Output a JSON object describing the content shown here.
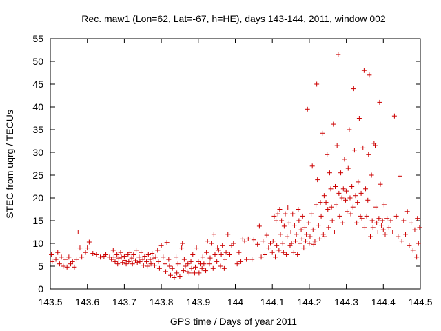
{
  "chart_data": {
    "type": "scatter",
    "title": "Rec. maw1 (Lon=62, Lat=-67, h=HE), days 143-144, 2011, window 002",
    "xlabel": "GPS time / Days of year 2011",
    "ylabel": "STEC from uqrg / TECUs",
    "xlim": [
      143.5,
      144.5
    ],
    "ylim": [
      0,
      55
    ],
    "xticks": [
      "143.5",
      "143.6",
      "143.7",
      "143.8",
      "143.9",
      "144",
      "144.1",
      "144.2",
      "144.3",
      "144.4",
      "144.5"
    ],
    "yticks": [
      "0",
      "5",
      "10",
      "15",
      "20",
      "25",
      "30",
      "35",
      "40",
      "45",
      "50",
      "55"
    ],
    "grid": false,
    "marker": "plus",
    "color": "#cc0000",
    "points": [
      [
        143.503,
        7.5
      ],
      [
        143.505,
        6.0
      ],
      [
        143.515,
        6.5
      ],
      [
        143.52,
        8.0
      ],
      [
        143.525,
        5.5
      ],
      [
        143.53,
        7.0
      ],
      [
        143.535,
        5.0
      ],
      [
        143.54,
        6.5
      ],
      [
        143.545,
        4.8
      ],
      [
        143.55,
        7.0
      ],
      [
        143.555,
        5.5
      ],
      [
        143.56,
        6.0
      ],
      [
        143.565,
        4.8
      ],
      [
        143.57,
        6.5
      ],
      [
        143.575,
        12.5
      ],
      [
        143.58,
        9.0
      ],
      [
        143.585,
        7.0
      ],
      [
        143.595,
        8.0
      ],
      [
        143.6,
        9.0
      ],
      [
        143.605,
        10.3
      ],
      [
        143.615,
        7.8
      ],
      [
        143.625,
        7.5
      ],
      [
        143.635,
        7.0
      ],
      [
        143.645,
        7.2
      ],
      [
        143.65,
        7.5
      ],
      [
        143.66,
        7.0
      ],
      [
        143.665,
        6.5
      ],
      [
        143.67,
        8.5
      ],
      [
        143.672,
        7.0
      ],
      [
        143.675,
        6.0
      ],
      [
        143.68,
        7.5
      ],
      [
        143.682,
        5.5
      ],
      [
        143.685,
        6.8
      ],
      [
        143.69,
        8.0
      ],
      [
        143.692,
        7.0
      ],
      [
        143.695,
        5.8
      ],
      [
        143.7,
        7.2
      ],
      [
        143.702,
        6.3
      ],
      [
        143.705,
        5.5
      ],
      [
        143.71,
        7.5
      ],
      [
        143.712,
        6.0
      ],
      [
        143.715,
        8.0
      ],
      [
        143.72,
        6.8
      ],
      [
        143.722,
        5.5
      ],
      [
        143.725,
        7.5
      ],
      [
        143.73,
        6.2
      ],
      [
        143.732,
        8.5
      ],
      [
        143.735,
        5.8
      ],
      [
        143.74,
        7.0
      ],
      [
        143.742,
        6.0
      ],
      [
        143.745,
        8.0
      ],
      [
        143.75,
        6.5
      ],
      [
        143.752,
        5.2
      ],
      [
        143.755,
        7.2
      ],
      [
        143.76,
        6.0
      ],
      [
        143.762,
        5.0
      ],
      [
        143.765,
        7.5
      ],
      [
        143.77,
        6.5
      ],
      [
        143.772,
        5.5
      ],
      [
        143.775,
        7.8
      ],
      [
        143.78,
        6.8
      ],
      [
        143.782,
        5.2
      ],
      [
        143.785,
        7.0
      ],
      [
        143.79,
        8.5
      ],
      [
        143.792,
        6.0
      ],
      [
        143.795,
        4.5
      ],
      [
        143.8,
        9.5
      ],
      [
        143.805,
        7.0
      ],
      [
        143.81,
        5.5
      ],
      [
        143.812,
        3.8
      ],
      [
        143.815,
        10.2
      ],
      [
        143.82,
        6.5
      ],
      [
        143.822,
        5.0
      ],
      [
        143.825,
        3.0
      ],
      [
        143.83,
        4.5
      ],
      [
        143.835,
        2.5
      ],
      [
        143.84,
        7.0
      ],
      [
        143.842,
        3.5
      ],
      [
        143.845,
        5.5
      ],
      [
        143.85,
        2.8
      ],
      [
        143.855,
        9.0
      ],
      [
        143.857,
        10.0
      ],
      [
        143.86,
        4.0
      ],
      [
        143.862,
        6.5
      ],
      [
        143.865,
        5.0
      ],
      [
        143.87,
        3.8
      ],
      [
        143.872,
        5.5
      ],
      [
        143.875,
        3.5
      ],
      [
        143.88,
        6.0
      ],
      [
        143.882,
        4.5
      ],
      [
        143.885,
        7.5
      ],
      [
        143.89,
        3.5
      ],
      [
        143.892,
        4.8
      ],
      [
        143.895,
        9.0
      ],
      [
        143.9,
        6.0
      ],
      [
        143.902,
        3.5
      ],
      [
        143.905,
        5.5
      ],
      [
        143.91,
        4.5
      ],
      [
        143.912,
        7.0
      ],
      [
        143.915,
        5.5
      ],
      [
        143.92,
        4.0
      ],
      [
        143.922,
        8.0
      ],
      [
        143.925,
        10.5
      ],
      [
        143.93,
        5.5
      ],
      [
        143.932,
        6.8
      ],
      [
        143.935,
        10.0
      ],
      [
        143.94,
        4.5
      ],
      [
        143.942,
        12.0
      ],
      [
        143.945,
        7.5
      ],
      [
        143.95,
        6.0
      ],
      [
        143.952,
        9.0
      ],
      [
        143.955,
        8.5
      ],
      [
        143.96,
        5.0
      ],
      [
        143.962,
        7.5
      ],
      [
        143.965,
        9.5
      ],
      [
        143.97,
        4.5
      ],
      [
        143.972,
        6.5
      ],
      [
        143.975,
        8.0
      ],
      [
        143.98,
        12.0
      ],
      [
        143.985,
        7.5
      ],
      [
        143.99,
        9.5
      ],
      [
        143.995,
        10.0
      ],
      [
        144.005,
        5.5
      ],
      [
        144.01,
        8.0
      ],
      [
        144.015,
        6.0
      ],
      [
        144.02,
        11.0
      ],
      [
        144.025,
        10.5
      ],
      [
        144.03,
        6.5
      ],
      [
        144.035,
        11.0
      ],
      [
        144.045,
        6.5
      ],
      [
        144.05,
        10.8
      ],
      [
        144.06,
        9.8
      ],
      [
        144.065,
        13.8
      ],
      [
        144.07,
        7.0
      ],
      [
        144.075,
        10.5
      ],
      [
        144.08,
        7.5
      ],
      [
        144.085,
        11.8
      ],
      [
        144.09,
        9.0
      ],
      [
        144.095,
        10.0
      ],
      [
        144.1,
        8.0
      ],
      [
        144.102,
        10.5
      ],
      [
        144.105,
        16.0
      ],
      [
        144.108,
        7.0
      ],
      [
        144.11,
        15.0
      ],
      [
        144.112,
        9.5
      ],
      [
        144.115,
        16.5
      ],
      [
        144.118,
        8.5
      ],
      [
        144.12,
        17.5
      ],
      [
        144.122,
        12.0
      ],
      [
        144.125,
        15.0
      ],
      [
        144.128,
        10.0
      ],
      [
        144.13,
        8.0
      ],
      [
        144.132,
        13.8
      ],
      [
        144.135,
        16.5
      ],
      [
        144.138,
        7.5
      ],
      [
        144.14,
        11.5
      ],
      [
        144.142,
        17.8
      ],
      [
        144.145,
        14.5
      ],
      [
        144.148,
        9.5
      ],
      [
        144.15,
        12.5
      ],
      [
        144.152,
        10.0
      ],
      [
        144.155,
        16.5
      ],
      [
        144.158,
        8.0
      ],
      [
        144.16,
        14.0
      ],
      [
        144.162,
        10.5
      ],
      [
        144.165,
        12.0
      ],
      [
        144.168,
        7.5
      ],
      [
        144.17,
        17.5
      ],
      [
        144.172,
        15.0
      ],
      [
        144.175,
        10.0
      ],
      [
        144.178,
        13.0
      ],
      [
        144.18,
        11.0
      ],
      [
        144.182,
        16.0
      ],
      [
        144.185,
        9.0
      ],
      [
        144.188,
        13.5
      ],
      [
        144.19,
        10.5
      ],
      [
        144.192,
        12.0
      ],
      [
        144.195,
        39.5
      ],
      [
        144.198,
        14.5
      ],
      [
        144.2,
        10.0
      ],
      [
        144.202,
        11.5
      ],
      [
        144.205,
        16.5
      ],
      [
        144.208,
        27.0
      ],
      [
        144.21,
        13.0
      ],
      [
        144.212,
        9.8
      ],
      [
        144.215,
        10.5
      ],
      [
        144.218,
        18.5
      ],
      [
        144.22,
        45.0
      ],
      [
        144.222,
        24.0
      ],
      [
        144.225,
        14.0
      ],
      [
        144.228,
        11.0
      ],
      [
        144.23,
        19.0
      ],
      [
        144.232,
        16.0
      ],
      [
        144.235,
        34.2
      ],
      [
        144.238,
        12.0
      ],
      [
        144.24,
        20.5
      ],
      [
        144.242,
        11.5
      ],
      [
        144.245,
        19.0
      ],
      [
        144.248,
        29.5
      ],
      [
        144.25,
        17.5
      ],
      [
        144.252,
        13.5
      ],
      [
        144.255,
        25.5
      ],
      [
        144.258,
        22.0
      ],
      [
        144.26,
        18.0
      ],
      [
        144.262,
        15.0
      ],
      [
        144.265,
        36.2
      ],
      [
        144.268,
        12.5
      ],
      [
        144.27,
        22.5
      ],
      [
        144.272,
        18.5
      ],
      [
        144.275,
        31.5
      ],
      [
        144.278,
        51.5
      ],
      [
        144.28,
        21.0
      ],
      [
        144.282,
        16.0
      ],
      [
        144.285,
        25.5
      ],
      [
        144.288,
        20.0
      ],
      [
        144.29,
        14.5
      ],
      [
        144.292,
        22.0
      ],
      [
        144.295,
        28.5
      ],
      [
        144.298,
        19.5
      ],
      [
        144.3,
        21.5
      ],
      [
        144.302,
        17.0
      ],
      [
        144.305,
        26.5
      ],
      [
        144.308,
        35.0
      ],
      [
        144.31,
        20.0
      ],
      [
        144.312,
        16.5
      ],
      [
        144.315,
        22.5
      ],
      [
        144.318,
        18.0
      ],
      [
        144.32,
        44.0
      ],
      [
        144.322,
        30.5
      ],
      [
        144.325,
        20.5
      ],
      [
        144.328,
        14.5
      ],
      [
        144.33,
        19.0
      ],
      [
        144.332,
        23.5
      ],
      [
        144.335,
        37.5
      ],
      [
        144.338,
        16.0
      ],
      [
        144.34,
        21.0
      ],
      [
        144.342,
        15.5
      ],
      [
        144.345,
        31.0
      ],
      [
        144.348,
        48.0
      ],
      [
        144.35,
        13.5
      ],
      [
        144.352,
        22.0
      ],
      [
        144.355,
        16.0
      ],
      [
        144.358,
        19.5
      ],
      [
        144.36,
        29.5
      ],
      [
        144.362,
        47.0
      ],
      [
        144.365,
        11.5
      ],
      [
        144.368,
        25.0
      ],
      [
        144.37,
        15.0
      ],
      [
        144.372,
        13.5
      ],
      [
        144.375,
        32.0
      ],
      [
        144.378,
        31.5
      ],
      [
        144.38,
        18.0
      ],
      [
        144.382,
        14.5
      ],
      [
        144.385,
        12.5
      ],
      [
        144.388,
        15.5
      ],
      [
        144.39,
        41.0
      ],
      [
        144.392,
        23.0
      ],
      [
        144.395,
        14.0
      ],
      [
        144.398,
        15.0
      ],
      [
        144.4,
        13.0
      ],
      [
        144.402,
        18.5
      ],
      [
        144.405,
        12.0
      ],
      [
        144.41,
        15.5
      ],
      [
        144.415,
        13.5
      ],
      [
        144.42,
        15.0
      ],
      [
        144.425,
        12.5
      ],
      [
        144.43,
        38.0
      ],
      [
        144.435,
        16.0
      ],
      [
        144.44,
        11.5
      ],
      [
        144.445,
        24.8
      ],
      [
        144.45,
        10.5
      ],
      [
        144.455,
        15.0
      ],
      [
        144.46,
        12.0
      ],
      [
        144.465,
        17.0
      ],
      [
        144.47,
        9.5
      ],
      [
        144.475,
        14.5
      ],
      [
        144.48,
        8.5
      ],
      [
        144.485,
        13.0
      ],
      [
        144.49,
        7.0
      ],
      [
        144.492,
        15.5
      ],
      [
        144.495,
        10.0
      ],
      [
        144.498,
        13.5
      ]
    ]
  }
}
